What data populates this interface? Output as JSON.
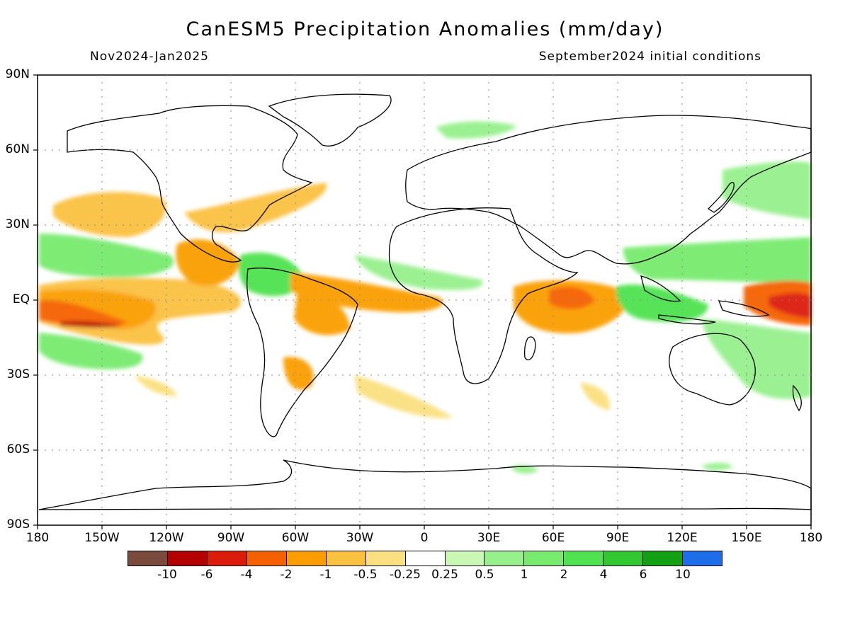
{
  "title": "CanESM5 Precipitation Anomalies (mm/day)",
  "subtitle_left": "Nov2024-Jan2025",
  "subtitle_right": "September2024 initial conditions",
  "map": {
    "type": "global precipitation anomaly map",
    "projection": "equirectangular",
    "grid": "dotted",
    "lon_range": [
      -180,
      180
    ],
    "lat_range": [
      -90,
      90
    ],
    "y_labels": [
      "90N",
      "60N",
      "30N",
      "EQ",
      "30S",
      "60S",
      "90S"
    ],
    "x_labels": [
      "180",
      "150W",
      "120W",
      "90W",
      "60W",
      "30W",
      "0",
      "30E",
      "60E",
      "90E",
      "120E",
      "150E",
      "180"
    ]
  },
  "colorbar": {
    "colors": [
      "#7a4a3c",
      "#b40000",
      "#dc1c0a",
      "#f56000",
      "#fa9e00",
      "#fac040",
      "#fae080",
      "#ffffff",
      "#c8f8b4",
      "#96f08c",
      "#78ea6e",
      "#50e250",
      "#32c832",
      "#14a014",
      "#1e6eeb"
    ],
    "labels": [
      "-10",
      "-6",
      "-4",
      "-2",
      "-1",
      "-0.5",
      "-0.25",
      "0.25",
      "0.5",
      "1",
      "2",
      "4",
      "6",
      "10"
    ]
  }
}
